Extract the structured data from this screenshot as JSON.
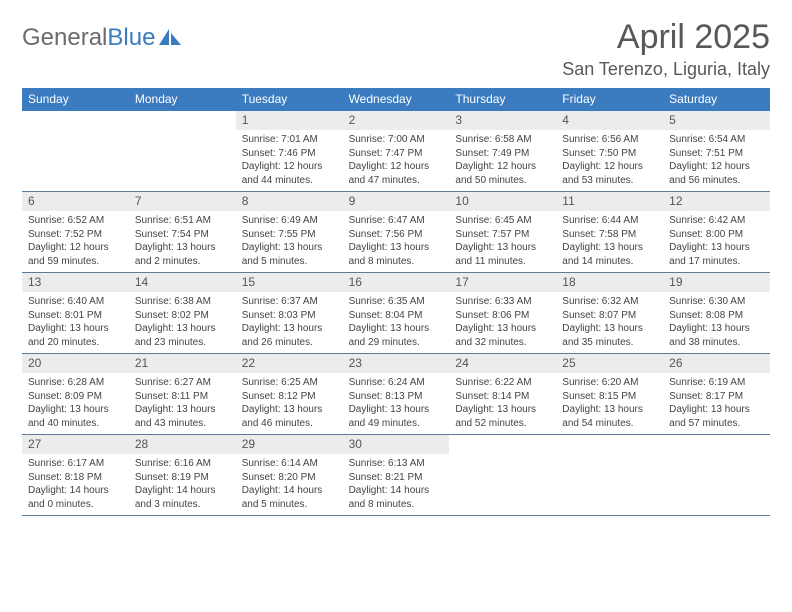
{
  "logo": {
    "part1": "General",
    "part2": "Blue"
  },
  "title": "April 2025",
  "location": "San Terenzo, Liguria, Italy",
  "colors": {
    "header_bg": "#3b7bbf",
    "header_text": "#ffffff",
    "daynum_bg": "#ececec",
    "border": "#5f7a99",
    "title_color": "#585858",
    "body_text": "#444444"
  },
  "weekdays": [
    "Sunday",
    "Monday",
    "Tuesday",
    "Wednesday",
    "Thursday",
    "Friday",
    "Saturday"
  ],
  "weeks": [
    [
      null,
      null,
      {
        "n": "1",
        "sr": "Sunrise: 7:01 AM",
        "ss": "Sunset: 7:46 PM",
        "dl": "Daylight: 12 hours and 44 minutes."
      },
      {
        "n": "2",
        "sr": "Sunrise: 7:00 AM",
        "ss": "Sunset: 7:47 PM",
        "dl": "Daylight: 12 hours and 47 minutes."
      },
      {
        "n": "3",
        "sr": "Sunrise: 6:58 AM",
        "ss": "Sunset: 7:49 PM",
        "dl": "Daylight: 12 hours and 50 minutes."
      },
      {
        "n": "4",
        "sr": "Sunrise: 6:56 AM",
        "ss": "Sunset: 7:50 PM",
        "dl": "Daylight: 12 hours and 53 minutes."
      },
      {
        "n": "5",
        "sr": "Sunrise: 6:54 AM",
        "ss": "Sunset: 7:51 PM",
        "dl": "Daylight: 12 hours and 56 minutes."
      }
    ],
    [
      {
        "n": "6",
        "sr": "Sunrise: 6:52 AM",
        "ss": "Sunset: 7:52 PM",
        "dl": "Daylight: 12 hours and 59 minutes."
      },
      {
        "n": "7",
        "sr": "Sunrise: 6:51 AM",
        "ss": "Sunset: 7:54 PM",
        "dl": "Daylight: 13 hours and 2 minutes."
      },
      {
        "n": "8",
        "sr": "Sunrise: 6:49 AM",
        "ss": "Sunset: 7:55 PM",
        "dl": "Daylight: 13 hours and 5 minutes."
      },
      {
        "n": "9",
        "sr": "Sunrise: 6:47 AM",
        "ss": "Sunset: 7:56 PM",
        "dl": "Daylight: 13 hours and 8 minutes."
      },
      {
        "n": "10",
        "sr": "Sunrise: 6:45 AM",
        "ss": "Sunset: 7:57 PM",
        "dl": "Daylight: 13 hours and 11 minutes."
      },
      {
        "n": "11",
        "sr": "Sunrise: 6:44 AM",
        "ss": "Sunset: 7:58 PM",
        "dl": "Daylight: 13 hours and 14 minutes."
      },
      {
        "n": "12",
        "sr": "Sunrise: 6:42 AM",
        "ss": "Sunset: 8:00 PM",
        "dl": "Daylight: 13 hours and 17 minutes."
      }
    ],
    [
      {
        "n": "13",
        "sr": "Sunrise: 6:40 AM",
        "ss": "Sunset: 8:01 PM",
        "dl": "Daylight: 13 hours and 20 minutes."
      },
      {
        "n": "14",
        "sr": "Sunrise: 6:38 AM",
        "ss": "Sunset: 8:02 PM",
        "dl": "Daylight: 13 hours and 23 minutes."
      },
      {
        "n": "15",
        "sr": "Sunrise: 6:37 AM",
        "ss": "Sunset: 8:03 PM",
        "dl": "Daylight: 13 hours and 26 minutes."
      },
      {
        "n": "16",
        "sr": "Sunrise: 6:35 AM",
        "ss": "Sunset: 8:04 PM",
        "dl": "Daylight: 13 hours and 29 minutes."
      },
      {
        "n": "17",
        "sr": "Sunrise: 6:33 AM",
        "ss": "Sunset: 8:06 PM",
        "dl": "Daylight: 13 hours and 32 minutes."
      },
      {
        "n": "18",
        "sr": "Sunrise: 6:32 AM",
        "ss": "Sunset: 8:07 PM",
        "dl": "Daylight: 13 hours and 35 minutes."
      },
      {
        "n": "19",
        "sr": "Sunrise: 6:30 AM",
        "ss": "Sunset: 8:08 PM",
        "dl": "Daylight: 13 hours and 38 minutes."
      }
    ],
    [
      {
        "n": "20",
        "sr": "Sunrise: 6:28 AM",
        "ss": "Sunset: 8:09 PM",
        "dl": "Daylight: 13 hours and 40 minutes."
      },
      {
        "n": "21",
        "sr": "Sunrise: 6:27 AM",
        "ss": "Sunset: 8:11 PM",
        "dl": "Daylight: 13 hours and 43 minutes."
      },
      {
        "n": "22",
        "sr": "Sunrise: 6:25 AM",
        "ss": "Sunset: 8:12 PM",
        "dl": "Daylight: 13 hours and 46 minutes."
      },
      {
        "n": "23",
        "sr": "Sunrise: 6:24 AM",
        "ss": "Sunset: 8:13 PM",
        "dl": "Daylight: 13 hours and 49 minutes."
      },
      {
        "n": "24",
        "sr": "Sunrise: 6:22 AM",
        "ss": "Sunset: 8:14 PM",
        "dl": "Daylight: 13 hours and 52 minutes."
      },
      {
        "n": "25",
        "sr": "Sunrise: 6:20 AM",
        "ss": "Sunset: 8:15 PM",
        "dl": "Daylight: 13 hours and 54 minutes."
      },
      {
        "n": "26",
        "sr": "Sunrise: 6:19 AM",
        "ss": "Sunset: 8:17 PM",
        "dl": "Daylight: 13 hours and 57 minutes."
      }
    ],
    [
      {
        "n": "27",
        "sr": "Sunrise: 6:17 AM",
        "ss": "Sunset: 8:18 PM",
        "dl": "Daylight: 14 hours and 0 minutes."
      },
      {
        "n": "28",
        "sr": "Sunrise: 6:16 AM",
        "ss": "Sunset: 8:19 PM",
        "dl": "Daylight: 14 hours and 3 minutes."
      },
      {
        "n": "29",
        "sr": "Sunrise: 6:14 AM",
        "ss": "Sunset: 8:20 PM",
        "dl": "Daylight: 14 hours and 5 minutes."
      },
      {
        "n": "30",
        "sr": "Sunrise: 6:13 AM",
        "ss": "Sunset: 8:21 PM",
        "dl": "Daylight: 14 hours and 8 minutes."
      },
      null,
      null,
      null
    ]
  ]
}
